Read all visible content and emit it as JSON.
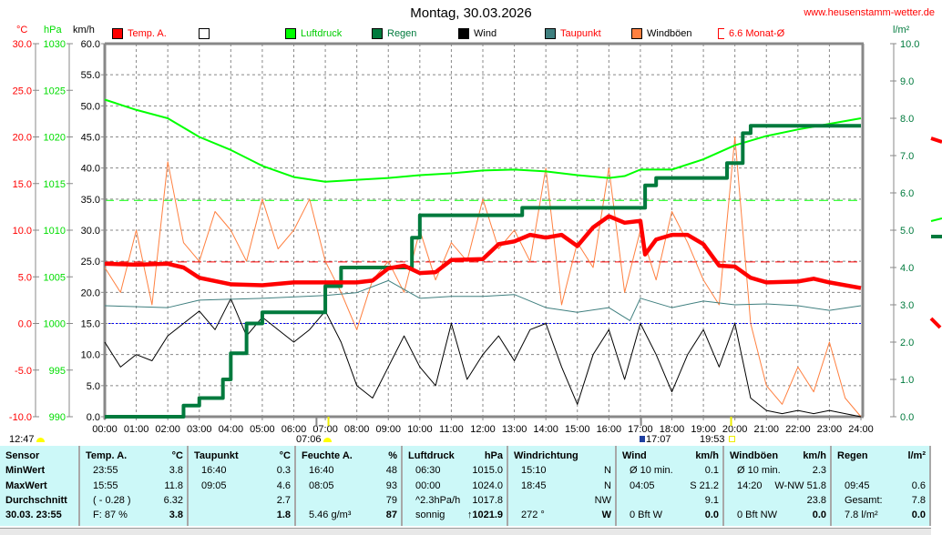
{
  "header": {
    "title": "Montag, 30.03.2026",
    "url": "www.heusenstamm-wetter.de"
  },
  "units": {
    "temp": "°C",
    "pressure": "hPa",
    "wind": "km/h",
    "rain": "l/m²"
  },
  "legend": [
    {
      "label": "Temp. A.",
      "color": "#ff0000",
      "text_color": "#ff0000"
    },
    {
      "label": "",
      "color": "#ffffff",
      "text_color": "#000000"
    },
    {
      "label": "Luftdruck",
      "color": "#00ff00",
      "text_color": "#00cc00"
    },
    {
      "label": "Regen",
      "color": "#007a3d",
      "text_color": "#007a3d"
    },
    {
      "label": "Wind",
      "color": "#000000",
      "text_color": "#000000"
    },
    {
      "label": "Taupunkt",
      "color": "#3f7f7f",
      "text_color": "#ff0000"
    },
    {
      "label": "Windböen",
      "color": "#ff8040",
      "text_color": "#000000"
    },
    {
      "label": "6.6 Monat-Ø",
      "color": "#ff0000",
      "text_color": "#ff0000"
    }
  ],
  "sun_markers": [
    {
      "label": "12:47"
    },
    {
      "label": "07:06"
    },
    {
      "label": "17:07"
    },
    {
      "label": "19:53"
    }
  ],
  "chart_data": {
    "type": "line",
    "x_ticks": [
      "00:00",
      "01:00",
      "02:00",
      "03:00",
      "04:00",
      "05:00",
      "06:00",
      "07:00",
      "08:00",
      "09:00",
      "10:00",
      "11:00",
      "12:00",
      "13:00",
      "14:00",
      "15:00",
      "16:00",
      "17:00",
      "18:00",
      "19:00",
      "20:00",
      "21:00",
      "22:00",
      "23:00",
      "24:00"
    ],
    "axes": {
      "temp": {
        "label": "°C",
        "range": [
          -10,
          30
        ],
        "ticks": [
          "30.0",
          "25.0",
          "20.0",
          "15.0",
          "10.0",
          "5.0",
          "0.0",
          "-5.0",
          "-10.0"
        ]
      },
      "pressure": {
        "label": "hPa",
        "range": [
          990,
          1030
        ],
        "ticks": [
          "1030",
          "1025",
          "1020",
          "1015",
          "1010",
          "1005",
          "1000",
          "995",
          "990"
        ]
      },
      "wind": {
        "label": "km/h",
        "range": [
          0,
          60
        ],
        "ticks": [
          "60.0",
          "55.0",
          "50.0",
          "45.0",
          "40.0",
          "35.0",
          "30.0",
          "25.0",
          "20.0",
          "15.0",
          "10.0",
          "5.0",
          "0.0"
        ]
      },
      "rain": {
        "label": "l/m²",
        "range": [
          0,
          10
        ],
        "ticks": [
          "10.0",
          "9.0",
          "8.0",
          "7.0",
          "6.0",
          "5.0",
          "4.0",
          "3.0",
          "2.0",
          "1.0",
          "0.0"
        ]
      }
    },
    "grid": true,
    "reference_lines": {
      "temp_month_avg": 6.6,
      "pressure_ref": 1013.2,
      "freezing": 0
    },
    "series": [
      {
        "name": "Temp. A.",
        "axis": "temp",
        "color": "#ff0000",
        "x": [
          0,
          1,
          2,
          2.5,
          3,
          4,
          5,
          6,
          7,
          8,
          8.5,
          9,
          9.5,
          10,
          10.5,
          11,
          12,
          12.5,
          13,
          13.5,
          14,
          14.5,
          15,
          15.5,
          16,
          16.5,
          17,
          17.15,
          17.5,
          18,
          18.5,
          19,
          19.5,
          20,
          20.5,
          21,
          22,
          22.5,
          23,
          24
        ],
        "y": [
          6.4,
          6.3,
          6.4,
          6.0,
          4.9,
          4.2,
          4.1,
          4.4,
          4.4,
          4.4,
          4.6,
          5.9,
          6.2,
          5.4,
          5.5,
          6.8,
          6.9,
          8.5,
          8.8,
          9.5,
          9.2,
          9.5,
          8.3,
          10.3,
          11.5,
          10.8,
          11.0,
          7.4,
          9.0,
          9.5,
          9.5,
          8.5,
          6.2,
          6.1,
          4.9,
          4.4,
          4.5,
          4.8,
          4.4,
          3.8
        ]
      },
      {
        "name": "Luftdruck",
        "axis": "pressure",
        "color": "#00ff00",
        "x": [
          0,
          1,
          2,
          3,
          4,
          5,
          6,
          7,
          8,
          9,
          10,
          11,
          12,
          13,
          14,
          15,
          16,
          16.5,
          17,
          18,
          19,
          20,
          21,
          22,
          23,
          24
        ],
        "y": [
          1024.0,
          1022.9,
          1022.0,
          1020.0,
          1018.6,
          1016.9,
          1015.7,
          1015.2,
          1015.4,
          1015.6,
          1015.9,
          1016.1,
          1016.4,
          1016.5,
          1016.3,
          1015.9,
          1015.6,
          1015.8,
          1016.5,
          1016.5,
          1017.6,
          1019.1,
          1020.1,
          1020.8,
          1021.4,
          1022.0
        ]
      },
      {
        "name": "Regen",
        "axis": "rain",
        "color": "#007a3d",
        "x": [
          0,
          2.25,
          2.5,
          3,
          3.75,
          4,
          4.5,
          5,
          6.5,
          7,
          7.5,
          9.5,
          9.75,
          10,
          13,
          13.25,
          17,
          17.15,
          17.5,
          19.5,
          19.75,
          20,
          20.25,
          20.5,
          24
        ],
        "y": [
          0,
          0,
          0.3,
          0.5,
          1.0,
          1.7,
          2.5,
          2.8,
          2.8,
          3.5,
          4.0,
          4.0,
          4.8,
          5.4,
          5.4,
          5.6,
          5.6,
          6.2,
          6.4,
          6.4,
          6.8,
          6.8,
          7.6,
          7.8,
          7.8
        ]
      },
      {
        "name": "Taupunkt",
        "axis": "temp",
        "color": "#3f7f7f",
        "x": [
          0,
          2,
          3,
          5,
          7,
          8,
          9,
          10,
          11,
          12,
          13,
          14,
          15,
          16,
          16.67,
          17,
          18,
          19,
          20,
          21,
          22,
          23,
          24
        ],
        "y": [
          1.9,
          1.7,
          2.5,
          2.7,
          3.0,
          3.3,
          4.6,
          2.7,
          2.9,
          2.9,
          3.1,
          1.7,
          1.2,
          1.7,
          0.3,
          2.7,
          1.7,
          2.4,
          2.0,
          2.1,
          1.9,
          1.4,
          1.9
        ]
      },
      {
        "name": "Wind",
        "axis": "wind",
        "color": "#000000",
        "x_step_hours": 0.5,
        "y": [
          12,
          8,
          10,
          9,
          13,
          15,
          17,
          14,
          19,
          13,
          16,
          14,
          12,
          14,
          17,
          12,
          5,
          3,
          8,
          13,
          8,
          5,
          15,
          6,
          10,
          13,
          9,
          14,
          15,
          8,
          2,
          10,
          14,
          6,
          15,
          10,
          4,
          10,
          14,
          8,
          15,
          3,
          1,
          0.5,
          1,
          0.5,
          1,
          0.5,
          0
        ]
      },
      {
        "name": "Windböen",
        "axis": "wind",
        "color": "#ff8040",
        "x_step_hours": 0.5,
        "y": [
          24,
          20,
          30,
          18,
          41,
          28,
          25,
          33,
          30,
          25,
          35,
          27,
          30,
          35,
          25,
          20,
          14,
          22,
          25,
          20,
          30,
          22,
          28,
          25,
          35,
          27,
          30,
          25,
          40,
          18,
          28,
          24,
          40,
          20,
          30,
          22,
          33,
          28,
          22,
          18,
          45,
          15,
          5,
          2,
          8,
          4,
          12,
          3,
          0
        ]
      }
    ]
  },
  "table": {
    "columns": [
      {
        "header": "Sensor",
        "unit": "",
        "rows": [
          [
            "MinWert",
            ""
          ],
          [
            "MaxWert",
            ""
          ],
          [
            "Durchschnitt",
            ""
          ],
          [
            "30.03. 23:55",
            ""
          ]
        ],
        "bold_labels": true
      },
      {
        "header": "Temp. A.",
        "unit": "°C",
        "rows": [
          [
            "23:55",
            "3.8"
          ],
          [
            "15:55",
            "11.8"
          ],
          [
            "( - 0.28 )",
            "6.32"
          ],
          [
            "F: 87 %",
            "3.8"
          ]
        ]
      },
      {
        "header": "Taupunkt",
        "unit": "°C",
        "rows": [
          [
            "16:40",
            "0.3"
          ],
          [
            "09:05",
            "4.6"
          ],
          [
            "",
            "2.7"
          ],
          [
            "",
            "1.8"
          ]
        ]
      },
      {
        "header": "Feuchte A.",
        "unit": "%",
        "rows": [
          [
            "16:40",
            "48"
          ],
          [
            "08:05",
            "93"
          ],
          [
            "",
            "79"
          ],
          [
            "5.46 g/m³",
            "87"
          ]
        ]
      },
      {
        "header": "Luftdruck",
        "unit": "hPa",
        "rows": [
          [
            "06:30",
            "1015.0"
          ],
          [
            "00:00",
            "1024.0"
          ],
          [
            "^2.3hPa/h",
            "1017.8"
          ],
          [
            "sonnig",
            "↑1021.9"
          ]
        ]
      },
      {
        "header": "Windrichtung",
        "unit": "",
        "rows": [
          [
            "15:10",
            "N"
          ],
          [
            "18:45",
            "N"
          ],
          [
            "",
            "NW"
          ],
          [
            "272 °",
            "W"
          ]
        ]
      },
      {
        "header": "Wind",
        "unit": "km/h",
        "rows": [
          [
            "Ø 10 min.",
            "0.1"
          ],
          [
            "04:05",
            "S 21.2"
          ],
          [
            "",
            "9.1"
          ],
          [
            "0 Bft W",
            "0.0"
          ]
        ]
      },
      {
        "header": "Windböen",
        "unit": "km/h",
        "rows": [
          [
            "Ø 10 min.",
            "2.3"
          ],
          [
            "14:20",
            "W-NW 51.8"
          ],
          [
            "",
            "23.8"
          ],
          [
            "0 Bft NW",
            "0.0"
          ]
        ]
      },
      {
        "header": "Regen",
        "unit": "l/m²",
        "rows": [
          [
            "",
            ""
          ],
          [
            "09:45",
            "0.6"
          ],
          [
            "Gesamt:",
            "7.8"
          ],
          [
            "7.8 l/m²",
            "0.0"
          ]
        ]
      }
    ]
  }
}
